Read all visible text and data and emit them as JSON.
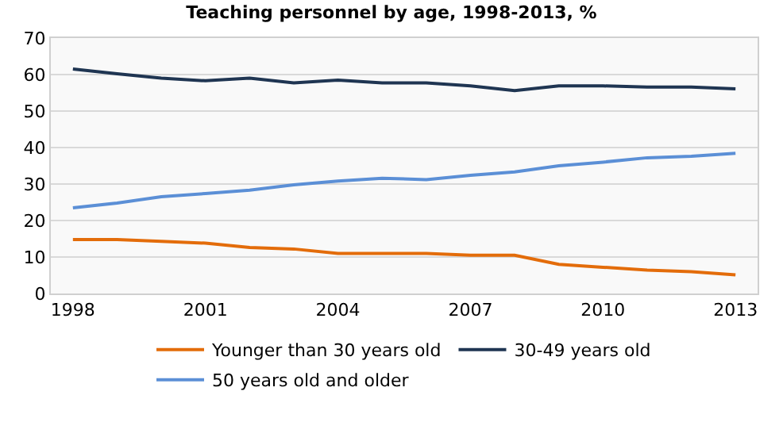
{
  "chart_data": {
    "type": "line",
    "title": "Teaching personnel by age, 1998-2013, %",
    "x": [
      1998,
      1999,
      2000,
      2001,
      2002,
      2003,
      2004,
      2005,
      2006,
      2007,
      2008,
      2009,
      2010,
      2011,
      2012,
      2013
    ],
    "series": [
      {
        "name": "Younger than 30 years old",
        "color": "#e36c0a",
        "values": [
          14.8,
          14.8,
          14.3,
          13.8,
          12.6,
          12.2,
          11,
          11,
          11,
          10.5,
          10.5,
          8,
          7.2,
          6.4,
          6,
          5.1
        ]
      },
      {
        "name": "30-49 years old",
        "color": "#1f3552",
        "values": [
          61.5,
          60.2,
          59,
          58.3,
          59,
          57.7,
          58.5,
          57.7,
          57.7,
          56.9,
          55.6,
          56.9,
          56.9,
          56.6,
          56.6,
          56.1
        ]
      },
      {
        "name": "50 years old and older",
        "color": "#5b8fd6",
        "values": [
          23.5,
          24.8,
          26.5,
          27.4,
          28.3,
          29.8,
          30.8,
          31.6,
          31.2,
          32.4,
          33.3,
          35,
          36,
          37.2,
          37.6,
          38.4
        ]
      }
    ],
    "xlim": [
      1997.5,
      2013.5
    ],
    "xticks": [
      1998,
      2001,
      2004,
      2007,
      2010,
      2013
    ],
    "ylim": [
      0,
      70
    ],
    "yticks": [
      0,
      10,
      20,
      30,
      40,
      50,
      60,
      70
    ],
    "grid": "y",
    "legend": "bottom",
    "marker": "none",
    "line_style": "solid"
  }
}
